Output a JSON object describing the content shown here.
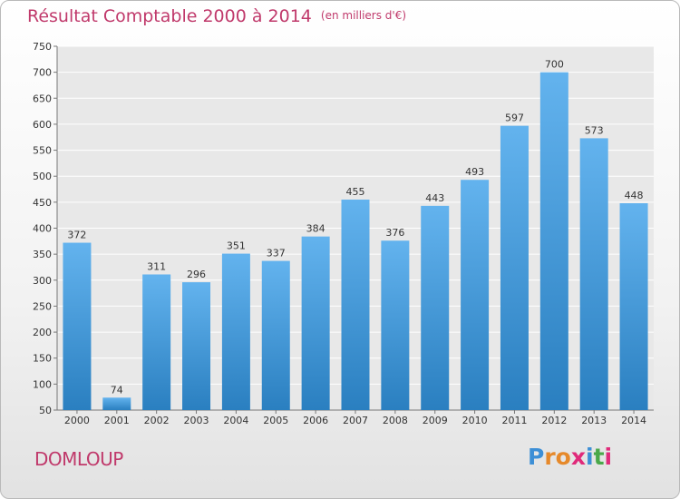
{
  "header": {
    "title": "Résultat Comptable 2000 à 2014",
    "unit": "(en milliers d'€)"
  },
  "footer": {
    "commune": "DOMLOUP",
    "brand": "Proxiti"
  },
  "colors": {
    "title": "#c0396b",
    "bar_top": "#63b3ee",
    "bar_bottom": "#2a7fc0",
    "grid": "#ffffff",
    "plot_bg": "#e8e8e8"
  },
  "chart_data": {
    "type": "bar",
    "categories": [
      "2000",
      "2001",
      "2002",
      "2003",
      "2004",
      "2005",
      "2006",
      "2007",
      "2008",
      "2009",
      "2010",
      "2011",
      "2012",
      "2013",
      "2014"
    ],
    "values": [
      372,
      74,
      311,
      296,
      351,
      337,
      384,
      455,
      376,
      443,
      493,
      597,
      700,
      573,
      448
    ],
    "ylim": [
      50,
      750
    ],
    "yticks": [
      50,
      100,
      150,
      200,
      250,
      300,
      350,
      400,
      450,
      500,
      550,
      600,
      650,
      700,
      750
    ],
    "grid": true,
    "legend": "none"
  }
}
